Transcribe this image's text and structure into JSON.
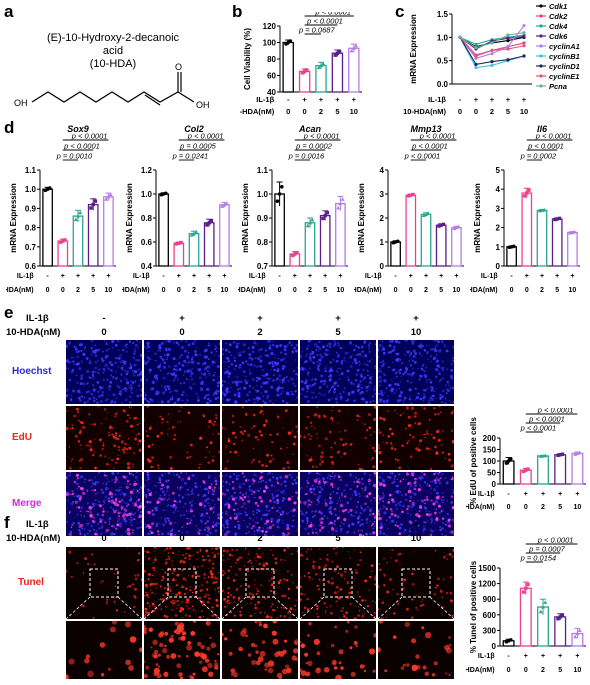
{
  "panels": {
    "a": "a",
    "b": "b",
    "c": "c",
    "d": "d",
    "e": "e",
    "f": "f"
  },
  "chemical": {
    "name": "(E)-10-Hydroxy-2-decanoic acid",
    "abbrev": "(10-HDA)",
    "oh_left": "OH",
    "o_top": "O",
    "oh_right": "OH"
  },
  "treat": {
    "il1b_label": "IL-1β",
    "hda_label": "10-HDA(nM)",
    "il1b_signs": [
      "-",
      "+",
      "+",
      "+",
      "+"
    ],
    "hda_doses": [
      "0",
      "0",
      "2",
      "5",
      "10"
    ]
  },
  "colors": {
    "g0": "#000000",
    "g1": "#ef3f8f",
    "g2": "#2aa68f",
    "g3": "#5a1e8a",
    "g4": "#b57ce8",
    "hoechst": "#2b2bd6",
    "edu": "#e8261a",
    "merge": "#d62ad6",
    "tunel": "#e8261a"
  },
  "images": {
    "e_rows": [
      "Hoechst",
      "EdU",
      "Merge"
    ],
    "f_rows": [
      "Tunel"
    ]
  },
  "chart_data": [
    {
      "id": "b",
      "type": "bar",
      "ylabel": "Cell Viability (%)",
      "ylim": [
        40,
        120
      ],
      "yticks": [
        40,
        60,
        80,
        100,
        120
      ],
      "categories": [
        "0",
        "0",
        "2",
        "5",
        "10"
      ],
      "values": [
        100,
        65,
        72,
        87,
        93
      ],
      "errors": [
        3,
        3,
        4,
        4,
        5
      ],
      "annotations": [
        {
          "text": "p < 0.0001",
          "from": 1,
          "to": 4
        },
        {
          "text": "p < 0.0001",
          "from": 1,
          "to": 3
        },
        {
          "text": "p = 0.0687",
          "from": 1,
          "to": 2
        }
      ]
    },
    {
      "id": "c",
      "type": "line",
      "ylabel": "mRNA Expression",
      "ylim": [
        0.0,
        1.5
      ],
      "yticks": [
        0.0,
        0.5,
        1.0,
        1.5
      ],
      "categories": [
        "0",
        "0",
        "2",
        "5",
        "10"
      ],
      "series": [
        {
          "name": "Cdk1",
          "color": "#000000",
          "values": [
            1.0,
            0.8,
            0.88,
            0.93,
            1.0
          ]
        },
        {
          "name": "Cdk2",
          "color": "#ef3f8f",
          "values": [
            1.0,
            0.62,
            0.72,
            0.8,
            0.88
          ]
        },
        {
          "name": "Cdk4",
          "color": "#2aa68f",
          "values": [
            1.0,
            0.85,
            0.95,
            1.0,
            1.05
          ]
        },
        {
          "name": "Cdk6",
          "color": "#5a1e8a",
          "values": [
            1.0,
            0.75,
            0.92,
            0.98,
            1.02
          ]
        },
        {
          "name": "cyclinA1",
          "color": "#b57ce8",
          "values": [
            1.0,
            0.55,
            0.65,
            0.8,
            1.25
          ]
        },
        {
          "name": "cyclinB1",
          "color": "#3fc7e0",
          "values": [
            1.0,
            0.35,
            0.4,
            0.5,
            0.6
          ]
        },
        {
          "name": "cyclinD1",
          "color": "#1a2a5a",
          "values": [
            1.0,
            0.42,
            0.48,
            0.52,
            0.6
          ]
        },
        {
          "name": "cyclinE1",
          "color": "#e0557a",
          "values": [
            1.0,
            0.6,
            0.72,
            0.75,
            0.82
          ]
        },
        {
          "name": "Pcna",
          "color": "#5fb89a",
          "values": [
            1.0,
            0.78,
            0.88,
            1.05,
            1.1
          ]
        }
      ]
    },
    {
      "id": "d1",
      "type": "bar",
      "title": "Sox9",
      "ylabel": "mRNA Expression",
      "ylim": [
        0.6,
        1.1
      ],
      "yticks": [
        0.6,
        0.7,
        0.8,
        0.9,
        1.0,
        1.1
      ],
      "ytick_decimals": 1,
      "categories": [
        "0",
        "0",
        "2",
        "5",
        "10"
      ],
      "values": [
        1.0,
        0.73,
        0.86,
        0.92,
        0.96
      ],
      "errors": [
        0.01,
        0.01,
        0.03,
        0.03,
        0.02
      ],
      "annotations": [
        {
          "text": "p < 0.0001",
          "from": 1,
          "to": 4
        },
        {
          "text": "p < 0.0001",
          "from": 1,
          "to": 3
        },
        {
          "text": "p = 0.0010",
          "from": 1,
          "to": 2
        }
      ]
    },
    {
      "id": "d2",
      "type": "bar",
      "title": "Col2",
      "ylabel": "mRNA Expression",
      "ylim": [
        0.4,
        1.2
      ],
      "yticks": [
        0.4,
        0.6,
        0.8,
        1.0,
        1.2
      ],
      "ytick_decimals": 1,
      "categories": [
        "0",
        "0",
        "2",
        "5",
        "10"
      ],
      "values": [
        1.0,
        0.59,
        0.67,
        0.76,
        0.91
      ],
      "errors": [
        0.01,
        0.01,
        0.02,
        0.03,
        0.02
      ],
      "annotations": [
        {
          "text": "p < 0.0001",
          "from": 1,
          "to": 4
        },
        {
          "text": "p = 0.0005",
          "from": 1,
          "to": 3
        },
        {
          "text": "p = 0.0241",
          "from": 1,
          "to": 2
        }
      ]
    },
    {
      "id": "d3",
      "type": "bar",
      "title": "Acan",
      "ylabel": "mRNA Expression",
      "ylim": [
        0.7,
        1.1
      ],
      "yticks": [
        0.7,
        0.8,
        0.9,
        1.0,
        1.1
      ],
      "ytick_decimals": 1,
      "categories": [
        "0",
        "0",
        "2",
        "5",
        "10"
      ],
      "values": [
        1.0,
        0.75,
        0.88,
        0.91,
        0.96
      ],
      "errors": [
        0.05,
        0.01,
        0.02,
        0.02,
        0.03
      ],
      "annotations": [
        {
          "text": "p < 0.0001",
          "from": 1,
          "to": 4
        },
        {
          "text": "p = 0.0002",
          "from": 1,
          "to": 3
        },
        {
          "text": "p = 0.0016",
          "from": 1,
          "to": 2
        }
      ]
    },
    {
      "id": "d4",
      "type": "bar",
      "title": "Mmp13",
      "ylabel": "mRNA Expression",
      "ylim": [
        0,
        4
      ],
      "yticks": [
        0,
        1,
        2,
        3,
        4
      ],
      "ytick_decimals": 0,
      "categories": [
        "0",
        "0",
        "2",
        "5",
        "10"
      ],
      "values": [
        1.0,
        2.95,
        2.15,
        1.7,
        1.6
      ],
      "errors": [
        0.05,
        0.05,
        0.07,
        0.06,
        0.06
      ],
      "annotations": [
        {
          "text": "p < 0.0001",
          "from": 1,
          "to": 4
        },
        {
          "text": "p < 0.0001",
          "from": 1,
          "to": 3
        },
        {
          "text": "p < 0.0001",
          "from": 1,
          "to": 2
        }
      ]
    },
    {
      "id": "d5",
      "type": "bar",
      "title": "Il6",
      "ylabel": "mRNA Expression",
      "ylim": [
        0,
        5
      ],
      "yticks": [
        0,
        1,
        2,
        3,
        4,
        5
      ],
      "ytick_decimals": 0,
      "categories": [
        "0",
        "0",
        "2",
        "5",
        "10"
      ],
      "values": [
        1.0,
        3.8,
        2.9,
        2.45,
        1.75
      ],
      "errors": [
        0.04,
        0.25,
        0.04,
        0.05,
        0.04
      ],
      "annotations": [
        {
          "text": "p < 0.0001",
          "from": 1,
          "to": 4
        },
        {
          "text": "p < 0.0001",
          "from": 1,
          "to": 3
        },
        {
          "text": "p = 0.0002",
          "from": 1,
          "to": 2
        }
      ]
    },
    {
      "id": "e",
      "type": "bar",
      "ylabel": "% EdU of positive cells",
      "ylim": [
        0,
        200
      ],
      "yticks": [
        0,
        50,
        100,
        150,
        200
      ],
      "ytick_decimals": 0,
      "categories": [
        "0",
        "0",
        "2",
        "5",
        "10"
      ],
      "values": [
        100,
        60,
        122,
        127,
        133
      ],
      "errors": [
        15,
        8,
        2,
        4,
        6
      ],
      "annotations": [
        {
          "text": "p < 0.0001",
          "from": 1,
          "to": 4
        },
        {
          "text": "p < 0.0001",
          "from": 1,
          "to": 3
        },
        {
          "text": "p < 0.0001",
          "from": 1,
          "to": 2
        }
      ]
    },
    {
      "id": "f",
      "type": "bar",
      "ylabel": "% Tunel of positive cells",
      "ylim": [
        0,
        1500
      ],
      "yticks": [
        0,
        300,
        600,
        900,
        1200,
        1500
      ],
      "ytick_decimals": 0,
      "categories": [
        "0",
        "0",
        "2",
        "5",
        "10"
      ],
      "values": [
        100,
        1110,
        750,
        560,
        240
      ],
      "errors": [
        30,
        120,
        150,
        60,
        100
      ],
      "annotations": [
        {
          "text": "p < 0.0001",
          "from": 1,
          "to": 4
        },
        {
          "text": "p = 0.0007",
          "from": 1,
          "to": 3
        },
        {
          "text": "p = 0.0154",
          "from": 1,
          "to": 2
        }
      ]
    }
  ]
}
